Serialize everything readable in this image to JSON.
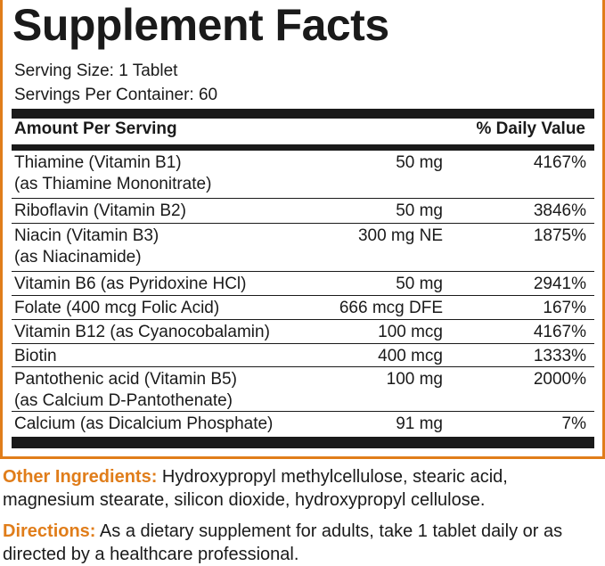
{
  "panel": {
    "title": "Supplement Facts",
    "serving_size": "Serving Size: 1 Tablet",
    "servings_per_container": "Servings Per Container: 60",
    "header_amount": "Amount Per Serving",
    "header_dv": "% Daily Value",
    "rows": [
      {
        "name": "Thiamine (Vitamin B1)",
        "sub": "(as Thiamine Mononitrate)",
        "amount": "50 mg",
        "dv": "4167%"
      },
      {
        "name": "Riboflavin (Vitamin B2)",
        "sub": "",
        "amount": "50 mg",
        "dv": "3846%"
      },
      {
        "name": "Niacin (Vitamin B3)",
        "sub": "(as Niacinamide)",
        "amount": "300 mg NE",
        "dv": "1875%"
      },
      {
        "name": "Vitamin B6 (as Pyridoxine HCl)",
        "sub": "",
        "amount": "50 mg",
        "dv": "2941%"
      },
      {
        "name": "Folate (400 mcg Folic Acid)",
        "sub": "",
        "amount": "666 mcg DFE",
        "dv": "167%"
      },
      {
        "name": "Vitamin B12 (as Cyanocobalamin)",
        "sub": "",
        "amount": "100 mcg",
        "dv": "4167%"
      },
      {
        "name": "Biotin",
        "sub": "",
        "amount": "400 mcg",
        "dv": "1333%"
      },
      {
        "name": "Pantothenic acid (Vitamin B5)",
        "sub": "(as Calcium D-Pantothenate)",
        "amount": "100 mg",
        "dv": "2000%"
      },
      {
        "name": "Calcium (as Dicalcium Phosphate)",
        "sub": "",
        "amount": "91 mg",
        "dv": "7%"
      }
    ]
  },
  "other_ingredients": {
    "label": "Other Ingredients:",
    "text": "Hydroxypropyl methylcellulose, stearic acid, magnesium stearate, silicon dioxide, hydroxypropyl cellulose."
  },
  "directions": {
    "label": "Directions:",
    "text": "As a dietary supplement for adults, take 1 tablet daily or as directed by a healthcare professional."
  },
  "colors": {
    "accent": "#e07d1a",
    "text": "#1a1a1a"
  }
}
